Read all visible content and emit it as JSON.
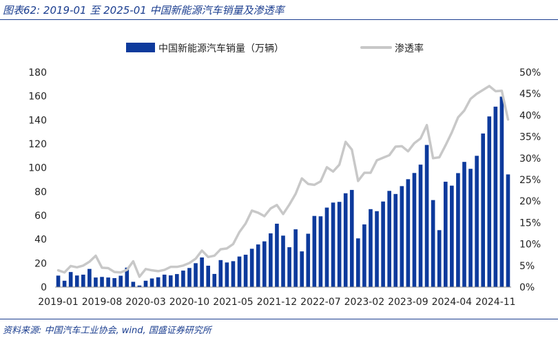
{
  "figure": {
    "title": "图表62:  2019-01 至 2025-01  中国新能源汽车销量及渗透率",
    "source": "资料来源:  中国汽车工业协会,  wind,  国盛证券研究所"
  },
  "colors": {
    "bar": "#0d3a9c",
    "line": "#c8c8c8",
    "accent": "#1a3d8f"
  },
  "chart_data": {
    "type": "bar",
    "categories": [
      "2019-01",
      "2019-02",
      "2019-03",
      "2019-04",
      "2019-05",
      "2019-06",
      "2019-07",
      "2019-08",
      "2019-09",
      "2019-10",
      "2019-11",
      "2019-12",
      "2020-01",
      "2020-02",
      "2020-03",
      "2020-04",
      "2020-05",
      "2020-06",
      "2020-07",
      "2020-08",
      "2020-09",
      "2020-10",
      "2020-11",
      "2020-12",
      "2021-01",
      "2021-02",
      "2021-03",
      "2021-04",
      "2021-05",
      "2021-06",
      "2021-07",
      "2021-08",
      "2021-09",
      "2021-10",
      "2021-11",
      "2021-12",
      "2022-01",
      "2022-02",
      "2022-03",
      "2022-04",
      "2022-05",
      "2022-06",
      "2022-07",
      "2022-08",
      "2022-09",
      "2022-10",
      "2022-11",
      "2022-12",
      "2023-01",
      "2023-02",
      "2023-03",
      "2023-04",
      "2023-05",
      "2023-06",
      "2023-07",
      "2023-08",
      "2023-09",
      "2023-10",
      "2023-11",
      "2023-12",
      "2024-01",
      "2024-02",
      "2024-03",
      "2024-04",
      "2024-05",
      "2024-06",
      "2024-07",
      "2024-08",
      "2024-09",
      "2024-10",
      "2024-11",
      "2024-12",
      "2025-01"
    ],
    "x_tick_labels": [
      "2019-01",
      "2019-08",
      "2020-03",
      "2020-10",
      "2021-05",
      "2021-12",
      "2022-07",
      "2023-02",
      "2023-09",
      "2024-04",
      "2024-11"
    ],
    "x_tick_step": 7,
    "series": [
      {
        "name": "中国新能源汽车销量（万辆）",
        "type": "bar",
        "axis": "left",
        "values": [
          9.6,
          5.3,
          12.6,
          9.7,
          10.4,
          15.2,
          8.0,
          8.5,
          8.0,
          7.5,
          9.5,
          16.3,
          4.4,
          1.3,
          5.3,
          7.2,
          8.2,
          10.4,
          9.8,
          10.9,
          13.8,
          16.0,
          20.0,
          24.8,
          17.9,
          11.0,
          22.6,
          20.6,
          21.7,
          25.6,
          27.1,
          32.1,
          35.7,
          38.3,
          45.0,
          53.1,
          43.1,
          33.4,
          48.4,
          29.9,
          44.7,
          59.6,
          59.3,
          66.6,
          70.8,
          71.4,
          78.6,
          81.4,
          40.8,
          52.5,
          65.3,
          63.6,
          71.7,
          80.6,
          78.0,
          84.6,
          90.4,
          95.6,
          102.6,
          119.1,
          72.9,
          47.7,
          88.3,
          85.0,
          95.5,
          104.9,
          99.1,
          110.0,
          128.7,
          143.0,
          151.2,
          159.6,
          94.4
        ]
      },
      {
        "name": "渗透率",
        "type": "line",
        "axis": "right",
        "values": [
          3.9,
          3.4,
          4.9,
          4.6,
          5.0,
          5.9,
          7.3,
          4.5,
          4.4,
          3.5,
          3.4,
          4.0,
          6.0,
          2.4,
          4.2,
          3.9,
          3.7,
          4.0,
          4.7,
          4.7,
          5.0,
          5.6,
          6.6,
          8.5,
          7.0,
          7.3,
          8.8,
          9.0,
          10.0,
          12.8,
          14.8,
          17.8,
          17.3,
          16.5,
          18.3,
          19.1,
          17.0,
          19.2,
          21.7,
          25.3,
          24.0,
          23.8,
          24.6,
          27.9,
          26.9,
          28.5,
          33.8,
          32.0,
          24.7,
          26.6,
          26.6,
          29.5,
          30.1,
          30.7,
          32.7,
          32.8,
          31.6,
          33.5,
          34.6,
          37.7,
          30.0,
          30.2,
          33.0,
          36.0,
          39.5,
          41.1,
          43.8,
          45.0,
          45.9,
          46.8,
          45.6,
          45.7,
          39.0
        ]
      }
    ],
    "ylim_left": [
      0,
      180
    ],
    "yticks_left": [
      0,
      20,
      40,
      60,
      80,
      100,
      120,
      140,
      160,
      180
    ],
    "ylim_right": [
      0,
      50
    ],
    "yticks_right": [
      "0%",
      "5%",
      "10%",
      "15%",
      "20%",
      "25%",
      "30%",
      "35%",
      "40%",
      "45%",
      "50%"
    ],
    "legend_position": "top-center",
    "grid": false
  }
}
